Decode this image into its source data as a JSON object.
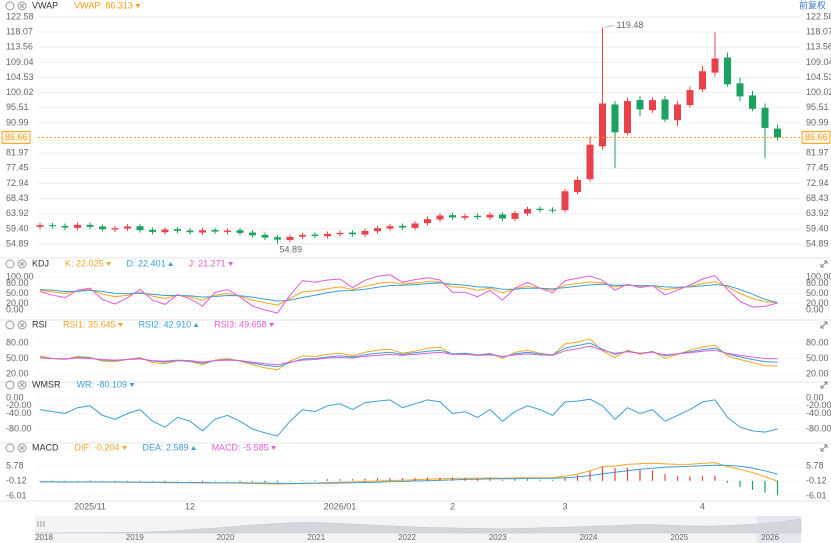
{
  "ui": {
    "adjust_button": "前复权"
  },
  "chart_data": [
    {
      "type": "candlestick",
      "title": "VWAP",
      "legend": [
        {
          "name": "VWAP: 86.313",
          "color": "#f39c12"
        }
      ],
      "categories": [
        null,
        null,
        null,
        null,
        "2025/11",
        null,
        null,
        null,
        null,
        null,
        null,
        null,
        "12",
        null,
        null,
        null,
        null,
        null,
        null,
        null,
        null,
        null,
        null,
        null,
        "2026/01",
        null,
        null,
        null,
        null,
        null,
        null,
        null,
        null,
        "2",
        null,
        null,
        null,
        null,
        null,
        null,
        null,
        null,
        "3",
        null,
        null,
        null,
        null,
        null,
        null,
        null,
        null,
        null,
        null,
        "4",
        null,
        null,
        null,
        null,
        null,
        null
      ],
      "open": [
        60.0,
        60.5,
        60.3,
        59.7,
        60.6,
        60.1,
        59.2,
        59.5,
        60.2,
        59.1,
        58.4,
        59.3,
        58.9,
        58.3,
        59.1,
        58.5,
        59.0,
        58.3,
        57.6,
        56.9,
        56.1,
        57.1,
        57.7,
        57.2,
        57.8,
        58.3,
        57.7,
        58.7,
        59.5,
        60.3,
        59.7,
        61.1,
        62.2,
        63.5,
        62.7,
        63.3,
        62.8,
        63.7,
        62.4,
        64.0,
        65.4,
        65.1,
        65.0,
        70.4,
        74.2,
        84.0,
        96.5,
        88.0,
        97.8,
        94.8,
        98.0,
        91.8,
        96.3,
        101.0,
        106.0,
        110.5,
        102.8,
        99.2,
        95.5,
        89.3
      ],
      "high": [
        61.2,
        61.2,
        61.0,
        61.3,
        61.3,
        60.8,
        60.3,
        60.8,
        60.9,
        59.8,
        59.9,
        60.0,
        59.6,
        59.7,
        59.8,
        59.6,
        59.7,
        59.0,
        58.3,
        57.6,
        57.7,
        58.3,
        58.4,
        58.6,
        58.9,
        59.0,
        59.5,
        60.3,
        60.9,
        61.0,
        61.7,
        63.0,
        64.1,
        64.2,
        63.9,
        64.0,
        64.3,
        64.4,
        64.8,
        66.0,
        66.1,
        65.8,
        71.3,
        75.0,
        87.0,
        119.48,
        97.5,
        98.5,
        99.0,
        98.6,
        99.0,
        97.5,
        101.8,
        108.0,
        118.0,
        112.0,
        104.5,
        100.5,
        96.8,
        90.5
      ],
      "low": [
        59.3,
        59.5,
        59.1,
        59.0,
        59.3,
        58.6,
        58.5,
        58.8,
        58.3,
        57.8,
        57.7,
        58.1,
        57.7,
        57.6,
        57.9,
        57.8,
        57.5,
        56.8,
        56.1,
        54.89,
        55.4,
        56.4,
        56.6,
        56.5,
        57.1,
        57.1,
        57.0,
        58.0,
        58.8,
        59.1,
        59.0,
        60.4,
        61.5,
        62.1,
        62.0,
        62.2,
        62.1,
        61.8,
        61.7,
        63.3,
        64.3,
        64.1,
        64.3,
        69.7,
        73.5,
        83.0,
        77.5,
        87.3,
        93.0,
        94.0,
        91.3,
        90.0,
        95.6,
        100.2,
        104.8,
        101.8,
        97.5,
        94.5,
        80.5,
        85.8
      ],
      "close": [
        60.5,
        60.2,
        59.8,
        60.6,
        60.0,
        59.3,
        59.6,
        60.1,
        59.0,
        58.5,
        59.2,
        58.8,
        58.4,
        59.0,
        58.6,
        58.9,
        58.2,
        57.5,
        56.8,
        56.2,
        57.0,
        57.6,
        57.3,
        57.9,
        58.2,
        57.8,
        58.8,
        59.6,
        60.2,
        59.8,
        61.0,
        62.3,
        63.4,
        62.8,
        63.2,
        62.9,
        63.6,
        62.5,
        64.1,
        65.3,
        65.0,
        64.8,
        70.6,
        74.0,
        84.5,
        96.8,
        88.2,
        97.5,
        95.0,
        97.8,
        92.0,
        96.5,
        100.8,
        106.4,
        110.2,
        102.5,
        98.9,
        95.2,
        89.5,
        86.66
      ],
      "up_color": "#e8414a",
      "down_color": "#1aa260",
      "price_line_color": "#f5a623",
      "ylim": [
        51.61,
        124.07
      ],
      "yticks": [
        122.58,
        118.07,
        113.56,
        109.04,
        104.53,
        100.02,
        95.51,
        90.99,
        81.97,
        77.45,
        72.94,
        68.43,
        63.92,
        {
          "value": 59.4,
          "label": "59.40"
        },
        54.89
      ],
      "grid": true
    },
    {
      "type": "line",
      "title": "KDJ",
      "series": [
        {
          "name": "K: 22.025",
          "color": "#f5a623",
          "values": [
            60,
            55,
            50,
            58,
            62,
            48,
            40,
            45,
            55,
            42,
            35,
            45,
            40,
            30,
            45,
            50,
            42,
            30,
            22,
            15,
            35,
            55,
            58,
            65,
            70,
            62,
            72,
            80,
            85,
            78,
            82,
            86,
            85,
            70,
            68,
            60,
            66,
            52,
            64,
            72,
            66,
            60,
            75,
            80,
            85,
            82,
            70,
            76,
            72,
            74,
            62,
            66,
            72,
            80,
            86,
            70,
            50,
            35,
            25,
            22.025
          ]
        },
        {
          "name": "D: 22.401",
          "color": "#3aa0d8",
          "values": [
            62,
            60,
            56,
            57,
            60,
            56,
            51,
            49,
            51,
            48,
            44,
            44,
            43,
            39,
            41,
            44,
            43,
            39,
            33,
            27,
            30,
            38,
            45,
            52,
            58,
            59,
            63,
            69,
            74,
            75,
            77,
            80,
            82,
            78,
            75,
            70,
            69,
            63,
            63,
            66,
            66,
            64,
            68,
            72,
            76,
            78,
            75,
            75,
            74,
            74,
            70,
            69,
            70,
            73,
            77,
            74,
            62,
            48,
            32,
            22.401
          ]
        },
        {
          "name": "J: 21.271",
          "color": "#e85bd6",
          "values": [
            56,
            45,
            38,
            60,
            66,
            32,
            18,
            37,
            63,
            30,
            17,
            47,
            34,
            12,
            53,
            62,
            40,
            12,
            0,
            -9,
            45,
            89,
            84,
            91,
            94,
            68,
            90,
            102,
            107,
            84,
            92,
            98,
            91,
            54,
            54,
            40,
            60,
            30,
            66,
            84,
            66,
            52,
            89,
            96,
            103,
            90,
            60,
            78,
            68,
            74,
            46,
            60,
            76,
            94,
            104,
            62,
            26,
            9,
            11,
            21.271
          ]
        }
      ],
      "ylim": [
        -24.2,
        121.2
      ],
      "yticks": [
        {
          "value": 100,
          "label": "100.00"
        },
        {
          "value": 80,
          "label": "80.00"
        },
        {
          "value": 50,
          "label": "50.00"
        },
        {
          "value": 20,
          "label": "20.00"
        },
        {
          "value": 0,
          "label": "0.00"
        }
      ],
      "grid": true
    },
    {
      "type": "line",
      "title": "RSI",
      "series": [
        {
          "name": "RSI1: 35.645",
          "color": "#f5a623",
          "values": [
            55,
            50,
            48,
            54,
            52,
            45,
            44,
            48,
            52,
            42,
            40,
            46,
            44,
            38,
            47,
            50,
            45,
            38,
            32,
            28,
            45,
            55,
            54,
            58,
            60,
            55,
            62,
            66,
            68,
            60,
            64,
            70,
            72,
            58,
            60,
            56,
            60,
            50,
            62,
            66,
            60,
            56,
            78,
            82,
            88,
            65,
            52,
            66,
            58,
            64,
            50,
            58,
            66,
            72,
            76,
            55,
            48,
            42,
            36,
            35.645
          ]
        },
        {
          "name": "RSI2: 42.910",
          "color": "#3aa0d8",
          "values": [
            52,
            50,
            49,
            52,
            51,
            47,
            46,
            48,
            50,
            45,
            43,
            46,
            45,
            41,
            46,
            48,
            46,
            41,
            37,
            34,
            42,
            49,
            50,
            53,
            55,
            53,
            57,
            60,
            62,
            58,
            61,
            64,
            66,
            59,
            60,
            57,
            59,
            53,
            59,
            62,
            59,
            57,
            70,
            75,
            80,
            68,
            58,
            64,
            60,
            63,
            55,
            59,
            63,
            67,
            70,
            59,
            53,
            48,
            44,
            42.91
          ]
        },
        {
          "name": "RSI3: 49.658",
          "color": "#e85bd6",
          "values": [
            51,
            50,
            49,
            51,
            50,
            48,
            47,
            48,
            49,
            46,
            45,
            47,
            46,
            43,
            46,
            47,
            46,
            43,
            40,
            38,
            43,
            47,
            48,
            51,
            52,
            51,
            54,
            56,
            58,
            56,
            58,
            60,
            62,
            58,
            58,
            56,
            57,
            54,
            57,
            59,
            57,
            56,
            65,
            69,
            74,
            66,
            60,
            63,
            60,
            62,
            57,
            59,
            61,
            64,
            66,
            60,
            56,
            53,
            50,
            49.658
          ]
        }
      ],
      "ylim": [
        8.4,
        101.3
      ],
      "yticks": [
        {
          "value": 80,
          "label": "80.00"
        },
        {
          "value": 50,
          "label": "50.00"
        },
        {
          "value": 20,
          "label": "20.00"
        }
      ],
      "grid": true
    },
    {
      "type": "line",
      "title": "WMSR",
      "series": [
        {
          "name": "WR: -80.109",
          "color": "#3aa0d8",
          "values": [
            -30,
            -35,
            -40,
            -25,
            -20,
            -45,
            -55,
            -40,
            -30,
            -60,
            -75,
            -50,
            -60,
            -85,
            -55,
            -45,
            -60,
            -80,
            -90,
            -98,
            -60,
            -30,
            -35,
            -20,
            -15,
            -30,
            -12,
            -8,
            -5,
            -25,
            -15,
            -5,
            -10,
            -40,
            -35,
            -50,
            -30,
            -60,
            -35,
            -20,
            -30,
            -45,
            -10,
            -8,
            -3,
            -20,
            -55,
            -25,
            -40,
            -30,
            -60,
            -45,
            -30,
            -10,
            -5,
            -50,
            -75,
            -85,
            -88,
            -80.109
          ]
        }
      ],
      "ylim": [
        -108.4,
        15.5
      ],
      "yticks": [
        {
          "value": 0,
          "label": "0.00"
        },
        {
          "value": -20,
          "label": "-20.00"
        },
        {
          "value": -40,
          "label": "-40.00"
        },
        {
          "value": -80,
          "label": "-80.00"
        }
      ],
      "grid": true
    },
    {
      "type": "line",
      "title": "MACD",
      "series": [
        {
          "name": "DIF: -0.204",
          "color": "#f5a623",
          "values": [
            -0.5,
            -0.5,
            -0.6,
            -0.5,
            -0.4,
            -0.5,
            -0.6,
            -0.6,
            -0.6,
            -0.7,
            -0.8,
            -0.8,
            -0.8,
            -0.9,
            -0.9,
            -0.9,
            -1.0,
            -1.1,
            -1.2,
            -1.3,
            -1.2,
            -1.0,
            -0.9,
            -0.7,
            -0.6,
            -0.5,
            -0.3,
            -0.1,
            0.1,
            0.2,
            0.4,
            0.6,
            0.8,
            0.9,
            1.0,
            1.0,
            1.1,
            1.0,
            1.1,
            1.2,
            1.2,
            1.2,
            1.8,
            2.6,
            3.9,
            5.5,
            5.8,
            6.4,
            6.7,
            6.9,
            6.6,
            6.4,
            6.5,
            6.8,
            7.1,
            5.6,
            4.5,
            3.2,
            1.6,
            -0.204
          ]
        },
        {
          "name": "DEA: 2.589",
          "color": "#3aa0d8",
          "values": [
            -0.4,
            -0.4,
            -0.5,
            -0.5,
            -0.5,
            -0.5,
            -0.5,
            -0.5,
            -0.6,
            -0.6,
            -0.6,
            -0.7,
            -0.7,
            -0.7,
            -0.8,
            -0.8,
            -0.8,
            -0.9,
            -0.9,
            -1.0,
            -1.1,
            -1.1,
            -1.0,
            -1.0,
            -0.9,
            -0.8,
            -0.7,
            -0.6,
            -0.4,
            -0.3,
            -0.1,
            0.0,
            0.2,
            0.3,
            0.5,
            0.6,
            0.7,
            0.8,
            0.8,
            0.9,
            1.0,
            1.0,
            1.2,
            1.5,
            2.0,
            2.7,
            3.3,
            3.9,
            4.5,
            4.9,
            5.3,
            5.5,
            5.7,
            5.9,
            6.1,
            6.0,
            5.7,
            5.0,
            3.9,
            2.589
          ]
        },
        {
          "name": "MACD: -5.585",
          "color": "#e85bd6",
          "style": "bar",
          "up_color": "#e8414a",
          "down_color": "#1aa260",
          "values": [
            -0.2,
            -0.2,
            -0.2,
            0,
            0.2,
            0,
            -0.2,
            -0.2,
            0,
            -0.2,
            -0.4,
            -0.2,
            -0.2,
            -0.4,
            -0.2,
            -0.2,
            -0.4,
            -0.4,
            -0.6,
            -0.6,
            -0.2,
            0.2,
            0.2,
            0.6,
            0.6,
            0.6,
            0.8,
            1.0,
            1.0,
            1.0,
            1.0,
            1.2,
            1.2,
            1.2,
            1.0,
            0.8,
            0.8,
            0.4,
            0.6,
            0.6,
            0.4,
            0.4,
            1.2,
            2.2,
            3.8,
            5.6,
            5.0,
            5.0,
            4.4,
            4.0,
            2.6,
            1.8,
            1.6,
            1.8,
            2.0,
            -0.8,
            -2.4,
            -3.6,
            -4.6,
            -5.585
          ]
        }
      ],
      "ylim": [
        -7.58,
        10.89
      ],
      "yticks": [
        5.78,
        -0.12,
        -6.01
      ],
      "grid": true
    }
  ],
  "navigator": {
    "labels": [
      "2018",
      "2019",
      "2020",
      "2021",
      "2022",
      "2023",
      "2024",
      "2025",
      "2026"
    ],
    "values": [
      20,
      21,
      22,
      22,
      23,
      25,
      30,
      38,
      45,
      55,
      62,
      68,
      70,
      66,
      60,
      55,
      50,
      46,
      44,
      42,
      40,
      42,
      45,
      48,
      52,
      55,
      60,
      58,
      54,
      52,
      56,
      62,
      70,
      86
    ],
    "color": "#d3d7dd"
  }
}
